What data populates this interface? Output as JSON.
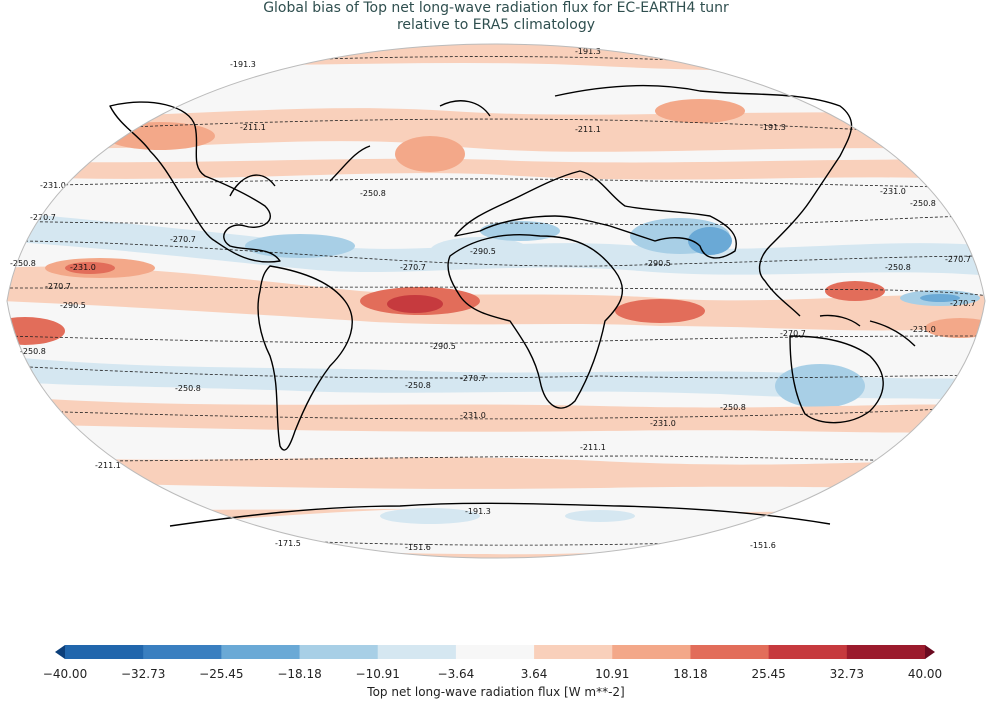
{
  "title_line1": "Global bias of Top net long-wave radiation flux for EC-EARTH4 tunr",
  "title_line2": "relative to ERA5 climatology",
  "colorbar": {
    "label": "Top net long-wave radiation flux [W m**-2]",
    "ticks": [
      "−40.00",
      "−32.73",
      "−25.45",
      "−18.18",
      "−10.91",
      "−3.64",
      "3.64",
      "10.91",
      "18.18",
      "25.45",
      "32.73",
      "40.00"
    ],
    "colors": [
      "#2166ac",
      "#3a7fc0",
      "#6aa9d6",
      "#a8cfe6",
      "#d5e7f1",
      "#f7f7f7",
      "#f9d0bb",
      "#f3a889",
      "#e26d5a",
      "#c63a3e",
      "#9b1b2d"
    ],
    "under_color": "#0c3f7a",
    "over_color": "#6b0a20"
  },
  "contour_labels": [
    "-191.3",
    "-211.1",
    "-231.0",
    "-250.8",
    "-270.7",
    "-290.5",
    "-151.6",
    "-171.5"
  ],
  "map_colors": {
    "ocean_bg": "#f7f7f7",
    "coast": "#000000",
    "contour": "#222222"
  }
}
